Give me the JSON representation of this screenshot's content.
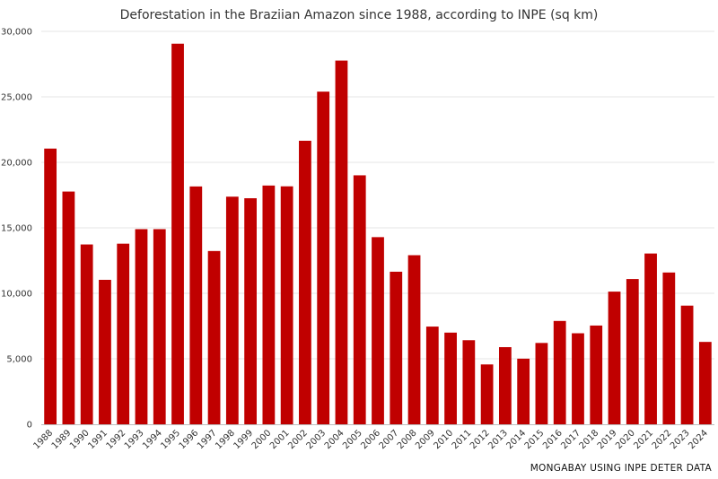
{
  "chart_data": {
    "type": "bar",
    "title": "Deforestation in the Braziian Amazon since 1988, according to INPE (sq km)",
    "source": "MONGABAY USING INPE DETER DATA",
    "categories": [
      "1988",
      "1989",
      "1990",
      "1991",
      "1992",
      "1993",
      "1994",
      "1995",
      "1996",
      "1997",
      "1998",
      "1999",
      "2000",
      "2001",
      "2002",
      "2003",
      "2004",
      "2005",
      "2006",
      "2007",
      "2008",
      "2009",
      "2010",
      "2011",
      "2012",
      "2013",
      "2014",
      "2015",
      "2016",
      "2017",
      "2018",
      "2019",
      "2020",
      "2021",
      "2022",
      "2023",
      "2024"
    ],
    "values": [
      21050,
      17770,
      13730,
      11030,
      13790,
      14900,
      14900,
      29060,
      18160,
      13230,
      17380,
      17260,
      18230,
      18170,
      21650,
      25400,
      27770,
      19010,
      14290,
      11650,
      12910,
      7460,
      7000,
      6420,
      4570,
      5890,
      5010,
      6210,
      7890,
      6950,
      7540,
      10130,
      11090,
      13040,
      11590,
      9060,
      6290
    ],
    "ylim": [
      0,
      30000
    ],
    "yticks": [
      0,
      5000,
      10000,
      15000,
      20000,
      25000,
      30000
    ],
    "ytick_labels": [
      "0",
      "5,000",
      "10,000",
      "15,000",
      "20,000",
      "25,000",
      "30,000"
    ],
    "xlabel": "",
    "ylabel": "",
    "grid": true,
    "legend": "none",
    "bar_color": "#c00000",
    "grid_color": "#e6e6e6",
    "axis_color": "#bdbdbd"
  }
}
